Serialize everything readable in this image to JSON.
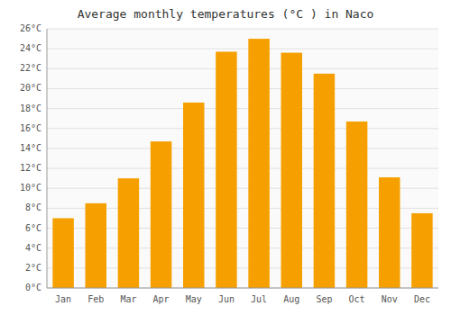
{
  "chart_data": {
    "type": "bar",
    "title": "Average monthly temperatures (°C ) in Naco",
    "categories": [
      "Jan",
      "Feb",
      "Mar",
      "Apr",
      "May",
      "Jun",
      "Jul",
      "Aug",
      "Sep",
      "Oct",
      "Nov",
      "Dec"
    ],
    "values": [
      7.0,
      8.5,
      11.0,
      14.7,
      18.6,
      23.7,
      25.0,
      23.6,
      21.5,
      16.7,
      11.1,
      7.5
    ],
    "color": "#F5A000",
    "ylim": [
      0,
      26
    ],
    "yticks": [
      {
        "value": 0,
        "label": "0°C"
      },
      {
        "value": 2,
        "label": "2°C"
      },
      {
        "value": 4,
        "label": "4°C"
      },
      {
        "value": 6,
        "label": "6°C"
      },
      {
        "value": 8,
        "label": "8°C"
      },
      {
        "value": 10,
        "label": "10°C"
      },
      {
        "value": 12,
        "label": "12°C"
      },
      {
        "value": 14,
        "label": "14°C"
      },
      {
        "value": 16,
        "label": "16°C"
      },
      {
        "value": 18,
        "label": "18°C"
      },
      {
        "value": 20,
        "label": "20°C"
      },
      {
        "value": 22,
        "label": "22°C"
      },
      {
        "value": 24,
        "label": "24°C"
      },
      {
        "value": 26,
        "label": "26°C"
      }
    ],
    "grid": true
  }
}
